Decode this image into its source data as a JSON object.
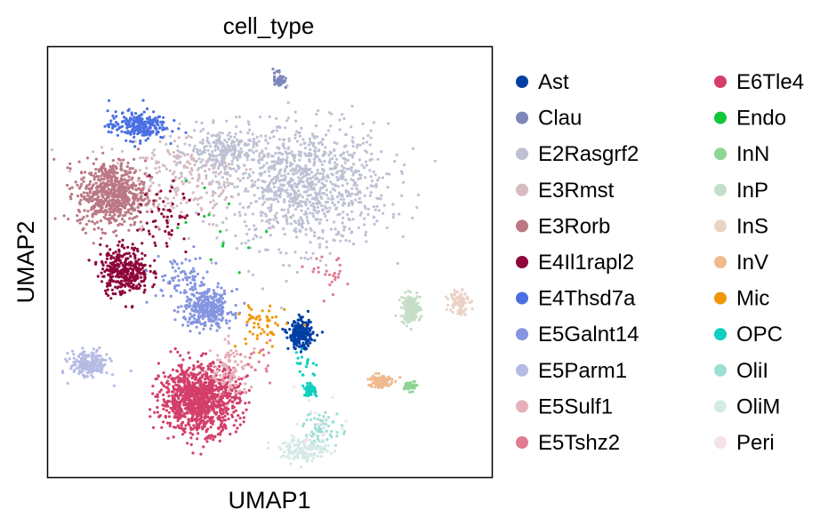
{
  "chart_data": {
    "type": "scatter",
    "title": "cell_type",
    "xlabel": "UMAP1",
    "ylabel": "UMAP2",
    "xticks": [],
    "yticks": [],
    "grid": false,
    "legend_position": "right",
    "legend_columns": 2,
    "categories": [
      {
        "name": "Ast",
        "color": "#023fa5"
      },
      {
        "name": "Clau",
        "color": "#7d87b9"
      },
      {
        "name": "E2Rasgrf2",
        "color": "#bec1d4"
      },
      {
        "name": "E3Rmst",
        "color": "#d6bcc0"
      },
      {
        "name": "E3Rorb",
        "color": "#bb7784"
      },
      {
        "name": "E4Il1rapl2",
        "color": "#8e063b"
      },
      {
        "name": "E4Thsd7a",
        "color": "#4a6fe3"
      },
      {
        "name": "E5Galnt14",
        "color": "#8595e1"
      },
      {
        "name": "E5Parm1",
        "color": "#b5bbe3"
      },
      {
        "name": "E5Sulf1",
        "color": "#e6afb9"
      },
      {
        "name": "E5Tshz2",
        "color": "#e07b91"
      },
      {
        "name": "E6Tle4",
        "color": "#d33f6a"
      },
      {
        "name": "Endo",
        "color": "#11c638"
      },
      {
        "name": "InN",
        "color": "#8dd593"
      },
      {
        "name": "InP",
        "color": "#c6dec7"
      },
      {
        "name": "InS",
        "color": "#ead3c6"
      },
      {
        "name": "InV",
        "color": "#f0b98d"
      },
      {
        "name": "Mic",
        "color": "#ef9708"
      },
      {
        "name": "OPC",
        "color": "#0fcfc0"
      },
      {
        "name": "OliI",
        "color": "#9cded6"
      },
      {
        "name": "OliM",
        "color": "#d5eae7"
      },
      {
        "name": "Peri",
        "color": "#f3e1eb"
      }
    ],
    "clusters": [
      {
        "category": "E3Rmst",
        "center": [
          0.3,
          0.7
        ],
        "spread": [
          0.16,
          0.1
        ],
        "n": 260
      },
      {
        "category": "E2Rasgrf2",
        "center": [
          0.58,
          0.68
        ],
        "spread": [
          0.17,
          0.13
        ],
        "n": 1000
      },
      {
        "category": "E2Rasgrf2",
        "center": [
          0.39,
          0.76
        ],
        "spread": [
          0.07,
          0.05
        ],
        "n": 200
      },
      {
        "category": "E3Rorb",
        "center": [
          0.14,
          0.66
        ],
        "spread": [
          0.07,
          0.07
        ],
        "n": 650
      },
      {
        "category": "E4Thsd7a",
        "center": [
          0.2,
          0.82
        ],
        "spread": [
          0.06,
          0.03
        ],
        "n": 240
      },
      {
        "category": "Clau",
        "center": [
          0.52,
          0.93
        ],
        "spread": [
          0.012,
          0.022
        ],
        "n": 45
      },
      {
        "category": "E4Il1rapl2",
        "center": [
          0.17,
          0.48
        ],
        "spread": [
          0.05,
          0.05
        ],
        "n": 330
      },
      {
        "category": "E4Il1rapl2",
        "center": [
          0.26,
          0.6
        ],
        "spread": [
          0.06,
          0.1
        ],
        "n": 60
      },
      {
        "category": "E5Galnt14",
        "center": [
          0.36,
          0.39
        ],
        "spread": [
          0.05,
          0.04
        ],
        "n": 320
      },
      {
        "category": "E5Galnt14",
        "center": [
          0.3,
          0.46
        ],
        "spread": [
          0.06,
          0.05
        ],
        "n": 80
      },
      {
        "category": "E5Parm1",
        "center": [
          0.09,
          0.26
        ],
        "spread": [
          0.04,
          0.03
        ],
        "n": 190
      },
      {
        "category": "E6Tle4",
        "center": [
          0.34,
          0.18
        ],
        "spread": [
          0.08,
          0.07
        ],
        "n": 1100
      },
      {
        "category": "E5Sulf1",
        "center": [
          0.41,
          0.24
        ],
        "spread": [
          0.04,
          0.06
        ],
        "n": 100
      },
      {
        "category": "E5Tshz2",
        "center": [
          0.64,
          0.47
        ],
        "spread": [
          0.04,
          0.04
        ],
        "n": 25
      },
      {
        "category": "E5Tshz2",
        "center": [
          0.47,
          0.27
        ],
        "spread": [
          0.03,
          0.04
        ],
        "n": 18
      },
      {
        "category": "Ast",
        "center": [
          0.57,
          0.33
        ],
        "spread": [
          0.025,
          0.03
        ],
        "n": 240
      },
      {
        "category": "Mic",
        "center": [
          0.48,
          0.35
        ],
        "spread": [
          0.05,
          0.05
        ],
        "n": 55
      },
      {
        "category": "OPC",
        "center": [
          0.59,
          0.2
        ],
        "spread": [
          0.012,
          0.012
        ],
        "n": 60
      },
      {
        "category": "OPC",
        "center": [
          0.58,
          0.26
        ],
        "spread": [
          0.03,
          0.03
        ],
        "n": 18
      },
      {
        "category": "OliI",
        "center": [
          0.62,
          0.11
        ],
        "spread": [
          0.04,
          0.04
        ],
        "n": 60
      },
      {
        "category": "OliM",
        "center": [
          0.58,
          0.06
        ],
        "spread": [
          0.05,
          0.025
        ],
        "n": 160
      },
      {
        "category": "InP",
        "center": [
          0.82,
          0.39
        ],
        "spread": [
          0.02,
          0.03
        ],
        "n": 170
      },
      {
        "category": "InS",
        "center": [
          0.93,
          0.41
        ],
        "spread": [
          0.02,
          0.03
        ],
        "n": 90
      },
      {
        "category": "InV",
        "center": [
          0.75,
          0.22
        ],
        "spread": [
          0.025,
          0.015
        ],
        "n": 110
      },
      {
        "category": "InN",
        "center": [
          0.82,
          0.21
        ],
        "spread": [
          0.012,
          0.01
        ],
        "n": 55
      },
      {
        "category": "Endo",
        "center": [
          0.38,
          0.56
        ],
        "spread": [
          0.08,
          0.08
        ],
        "n": 14
      },
      {
        "category": "Peri",
        "center": [
          0.62,
          0.12
        ],
        "spread": [
          0.05,
          0.05
        ],
        "n": 15
      }
    ]
  }
}
